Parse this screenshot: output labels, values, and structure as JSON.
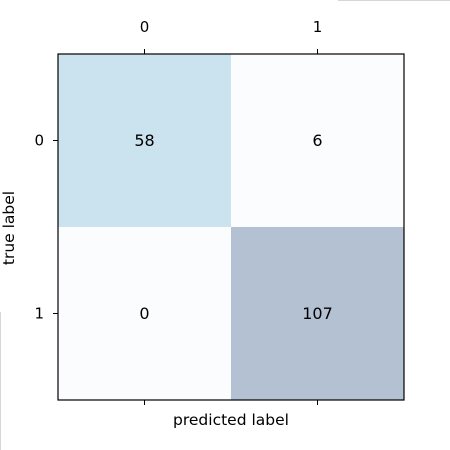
{
  "chart_data": {
    "type": "heatmap",
    "title": "",
    "xlabel": "predicted label",
    "ylabel": "true label",
    "x_categories": [
      "0",
      "1"
    ],
    "y_categories": [
      "0",
      "1"
    ],
    "values": [
      [
        58,
        6
      ],
      [
        0,
        107
      ]
    ],
    "x_ticks_position": "top",
    "colors": {
      "low": "#fbfcfe",
      "mid": "#cbe2ef",
      "high": "#b4c1d3"
    }
  }
}
